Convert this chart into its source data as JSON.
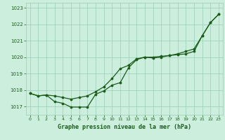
{
  "hours": [
    0,
    1,
    2,
    3,
    4,
    5,
    6,
    7,
    8,
    9,
    10,
    11,
    12,
    13,
    14,
    15,
    16,
    17,
    18,
    19,
    20,
    21,
    22,
    23
  ],
  "line1": [
    1017.8,
    1017.65,
    1017.7,
    1017.65,
    1017.55,
    1017.45,
    1017.55,
    1017.65,
    1017.9,
    1018.2,
    1018.7,
    1019.3,
    1019.5,
    1019.9,
    1020.0,
    1019.95,
    1020.0,
    1020.1,
    1020.2,
    1020.35,
    1020.5,
    1021.3,
    1022.1,
    1022.6
  ],
  "line2": [
    1017.8,
    1017.65,
    1017.7,
    1017.3,
    1017.2,
    1016.97,
    1016.97,
    1016.97,
    1017.75,
    1017.95,
    1018.3,
    1018.45,
    1019.35,
    1019.85,
    1020.0,
    1020.0,
    1020.05,
    1020.1,
    1020.15,
    1020.2,
    1020.35,
    1021.3,
    1022.1,
    1022.6
  ],
  "line_color": "#1a5c1a",
  "marker_color": "#1a5c1a",
  "bg_color": "#cceedd",
  "grid_color": "#99ccbb",
  "xlabel": "Graphe pression niveau de la mer (hPa)",
  "xlim": [
    -0.5,
    23.5
  ],
  "ylim": [
    1016.5,
    1023.3
  ],
  "yticks": [
    1017,
    1018,
    1019,
    1020,
    1021,
    1022,
    1023
  ],
  "xticks": [
    0,
    1,
    2,
    3,
    4,
    5,
    6,
    7,
    8,
    9,
    10,
    11,
    12,
    13,
    14,
    15,
    16,
    17,
    18,
    19,
    20,
    21,
    22,
    23
  ]
}
